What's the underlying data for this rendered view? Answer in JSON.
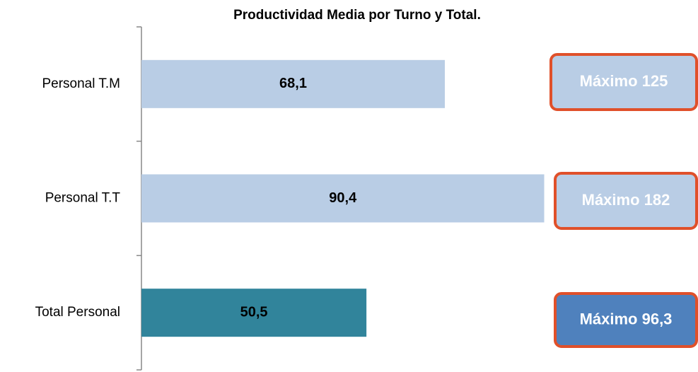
{
  "chart_data": {
    "type": "hbar",
    "title": "Productividad Media por Turno y Total.",
    "categories": [
      "Personal T.M",
      "Personal T.T",
      "Total Personal"
    ],
    "values": [
      68.1,
      90.4,
      50.5
    ],
    "value_labels": [
      "68,1",
      "90,4",
      "50,5"
    ],
    "colors": [
      "#b9cde5",
      "#b9cde5",
      "#31849b"
    ],
    "xlim": [
      0,
      125
    ],
    "annotations": [
      {
        "text": "Máximo 125",
        "color": "#b9cde5"
      },
      {
        "text": "Máximo 182",
        "color": "#b9cde5"
      },
      {
        "text": "Máximo 96,3",
        "color": "#4f81bd"
      }
    ]
  }
}
